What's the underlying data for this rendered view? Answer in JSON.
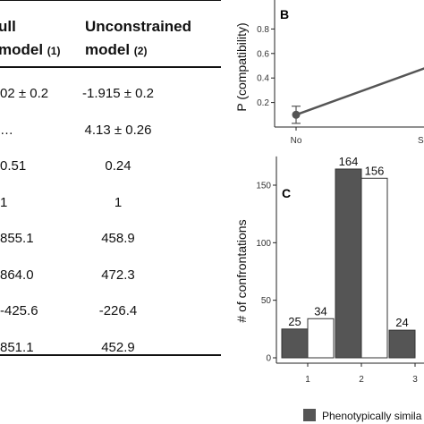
{
  "table": {
    "col1_header_line1": "ull",
    "col1_header_line2": "model",
    "col1_header_sub": "(1)",
    "col2_header_line1": "Unconstrained",
    "col2_header_line2": "model",
    "col2_header_sub": "(2)",
    "rows": [
      {
        "c1": "02 ± 0.2",
        "c2": "-1.915 ± 0.2"
      },
      {
        "c1": "…",
        "c2": "4.13 ± 0.26"
      },
      {
        "c1": "0.51",
        "c2": "0.24"
      },
      {
        "c1": "1",
        "c2": "1"
      },
      {
        "c1": "855.1",
        "c2": "458.9"
      },
      {
        "c1": "864.0",
        "c2": "472.3"
      },
      {
        "c1": "-425.6",
        "c2": "-226.4"
      },
      {
        "c1": "851.1",
        "c2": "452.9"
      }
    ]
  },
  "chart_data": [
    {
      "type": "line",
      "panel_label": "B",
      "ylabel": "P (compatibility)",
      "yticks": [
        0.2,
        0.4,
        0.6,
        0.8
      ],
      "ylim": [
        0,
        1.0
      ],
      "categories": [
        "No",
        "S"
      ],
      "values": [
        0.1,
        0.52
      ],
      "error": [
        0.07,
        null
      ],
      "grid": false
    },
    {
      "type": "bar",
      "panel_label": "C",
      "ylabel": "# of confrontations",
      "yticks": [
        0,
        50,
        100,
        150
      ],
      "ylim": [
        0,
        175
      ],
      "categories": [
        "1",
        "2",
        "3"
      ],
      "series": [
        {
          "name": "Phenotypically simila",
          "color": "#555555",
          "values": [
            25,
            164,
            24
          ]
        },
        {
          "color": "#ffffff",
          "values": [
            34,
            156,
            null
          ]
        }
      ],
      "grid": false,
      "legend": "bottom"
    }
  ]
}
